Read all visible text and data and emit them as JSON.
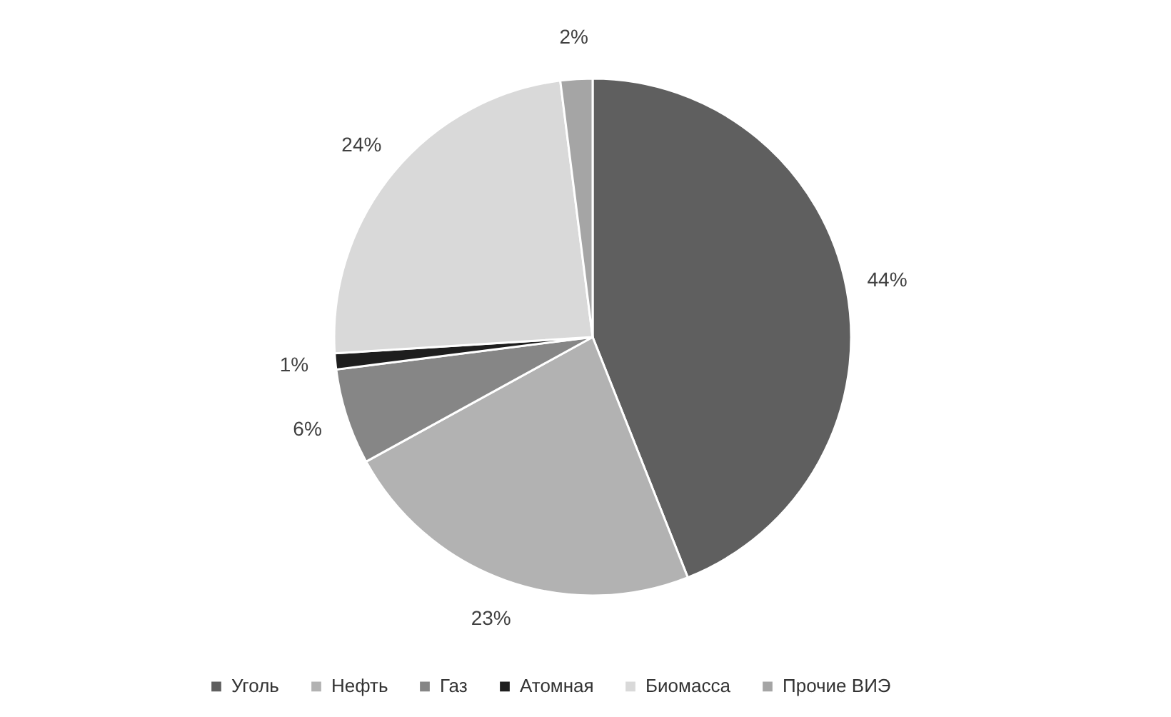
{
  "chart_data": {
    "type": "pie",
    "categories": [
      "Уголь",
      "Нефть",
      "Газ",
      "Атомная",
      "Биомасса",
      "Прочие ВИЭ"
    ],
    "values": [
      44,
      23,
      6,
      1,
      24,
      2
    ],
    "colors": [
      "#5f5f5f",
      "#b2b2b2",
      "#868686",
      "#1e1e1e",
      "#d9d9d9",
      "#a5a5a5"
    ],
    "value_labels": [
      "44%",
      "23%",
      "6%",
      "1%",
      "24%",
      "2%"
    ],
    "legend": "bottom"
  }
}
